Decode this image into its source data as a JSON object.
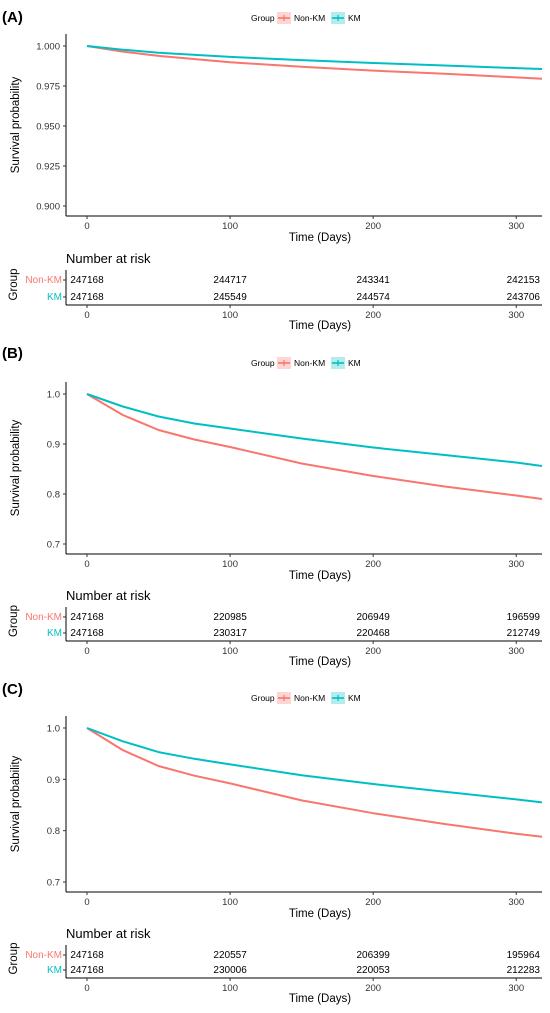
{
  "chart_data": [
    {
      "type": "line",
      "panel_label": "(A)",
      "legend_title": "Group",
      "ylabel": "Survival probability",
      "xlabel": "Time (Days)",
      "xlim": [
        0,
        318
      ],
      "ylim": [
        0.9,
        1.0
      ],
      "y_ticks": [
        0.9,
        0.925,
        0.95,
        0.975,
        1.0
      ],
      "y_tick_labels": [
        "0.900",
        "0.925",
        "0.950",
        "0.975",
        "1.000"
      ],
      "x_ticks": [
        0,
        100,
        200,
        300
      ],
      "grid": false,
      "legend_position": "top",
      "series": [
        {
          "name": "Non-KM",
          "color": "#F8766D",
          "x": [
            0,
            25,
            50,
            100,
            150,
            200,
            250,
            300,
            318
          ],
          "y": [
            1.0,
            0.9965,
            0.9938,
            0.9898,
            0.987,
            0.9846,
            0.9826,
            0.9804,
            0.9795
          ]
        },
        {
          "name": "KM",
          "color": "#00BFC4",
          "x": [
            0,
            25,
            50,
            100,
            150,
            200,
            250,
            300,
            318
          ],
          "y": [
            1.0,
            0.9977,
            0.9958,
            0.9932,
            0.9912,
            0.9894,
            0.9878,
            0.9862,
            0.9856
          ]
        }
      ],
      "risk_table": {
        "title": "Number at risk",
        "ylabel": "Group",
        "xlabel": "Time (Days)",
        "times": [
          0,
          100,
          200,
          300
        ],
        "rows": [
          {
            "name": "Non-KM",
            "color": "#F8766D",
            "values": [
              "247168",
              "244717",
              "243341",
              "242153"
            ]
          },
          {
            "name": "KM",
            "color": "#00BFC4",
            "values": [
              "247168",
              "245549",
              "244574",
              "243706"
            ]
          }
        ]
      }
    },
    {
      "type": "line",
      "panel_label": "(B)",
      "legend_title": "Group",
      "ylabel": "Survival probability",
      "xlabel": "Time (Days)",
      "xlim": [
        0,
        318
      ],
      "ylim": [
        0.7,
        1.0
      ],
      "y_ticks": [
        0.7,
        0.8,
        0.9,
        1.0
      ],
      "y_tick_labels": [
        "0.7",
        "0.8",
        "0.9",
        "1.0"
      ],
      "x_ticks": [
        0,
        100,
        200,
        300
      ],
      "grid": false,
      "legend_position": "top",
      "series": [
        {
          "name": "Non-KM",
          "color": "#F8766D",
          "x": [
            0,
            25,
            50,
            75,
            100,
            150,
            200,
            250,
            300,
            318
          ],
          "y": [
            1.0,
            0.958,
            0.928,
            0.909,
            0.894,
            0.861,
            0.836,
            0.815,
            0.797,
            0.79
          ]
        },
        {
          "name": "KM",
          "color": "#00BFC4",
          "x": [
            0,
            25,
            50,
            75,
            100,
            150,
            200,
            250,
            300,
            318
          ],
          "y": [
            1.0,
            0.975,
            0.955,
            0.941,
            0.931,
            0.911,
            0.893,
            0.878,
            0.863,
            0.856
          ]
        }
      ],
      "risk_table": {
        "title": "Number at risk",
        "ylabel": "Group",
        "xlabel": "Time (Days)",
        "times": [
          0,
          100,
          200,
          300
        ],
        "rows": [
          {
            "name": "Non-KM",
            "color": "#F8766D",
            "values": [
              "247168",
              "220985",
              "206949",
              "196599"
            ]
          },
          {
            "name": "KM",
            "color": "#00BFC4",
            "values": [
              "247168",
              "230317",
              "220468",
              "212749"
            ]
          }
        ]
      }
    },
    {
      "type": "line",
      "panel_label": "(C)",
      "legend_title": "Group",
      "ylabel": "Survival probability",
      "xlabel": "Time (Days)",
      "xlim": [
        0,
        318
      ],
      "ylim": [
        0.7,
        1.0
      ],
      "y_ticks": [
        0.7,
        0.8,
        0.9,
        1.0
      ],
      "y_tick_labels": [
        "0.7",
        "0.8",
        "0.9",
        "1.0"
      ],
      "x_ticks": [
        0,
        100,
        200,
        300
      ],
      "grid": false,
      "legend_position": "top",
      "series": [
        {
          "name": "Non-KM",
          "color": "#F8766D",
          "x": [
            0,
            25,
            50,
            75,
            100,
            150,
            200,
            250,
            300,
            318
          ],
          "y": [
            1.0,
            0.957,
            0.926,
            0.907,
            0.892,
            0.859,
            0.834,
            0.813,
            0.794,
            0.788
          ]
        },
        {
          "name": "KM",
          "color": "#00BFC4",
          "x": [
            0,
            25,
            50,
            75,
            100,
            150,
            200,
            250,
            300,
            318
          ],
          "y": [
            1.0,
            0.974,
            0.953,
            0.94,
            0.929,
            0.908,
            0.891,
            0.876,
            0.861,
            0.855
          ]
        }
      ],
      "risk_table": {
        "title": "Number at risk",
        "ylabel": "Group",
        "xlabel": "Time (Days)",
        "times": [
          0,
          100,
          200,
          300
        ],
        "rows": [
          {
            "name": "Non-KM",
            "color": "#F8766D",
            "values": [
              "247168",
              "220557",
              "206399",
              "195964"
            ]
          },
          {
            "name": "KM",
            "color": "#00BFC4",
            "values": [
              "247168",
              "230006",
              "220053",
              "212283"
            ]
          }
        ]
      }
    }
  ]
}
